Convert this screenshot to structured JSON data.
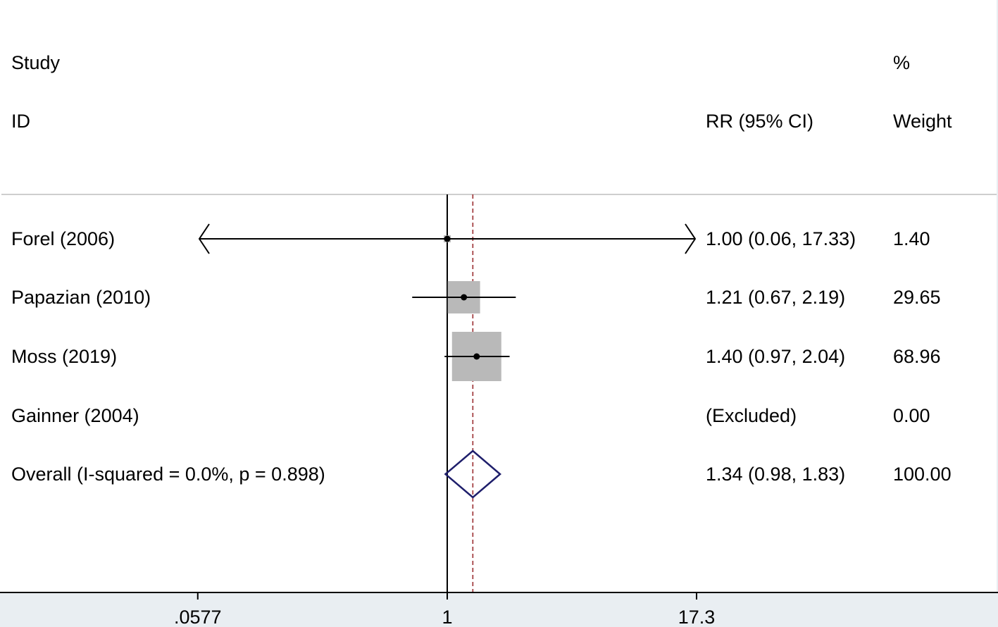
{
  "chart_data": {
    "type": "forest",
    "header": {
      "study_line1": "Study",
      "study_line2": "ID",
      "estimate_header": "RR (95% CI)",
      "weight_line1": "%",
      "weight_line2": "Weight"
    },
    "studies": [
      {
        "label": "Forel (2006)",
        "rr": 1.0,
        "lo": 0.06,
        "hi": 17.33,
        "ci_text": "1.00 (0.06, 17.33)",
        "weight": 1.4,
        "weight_text": "1.40",
        "excluded": false,
        "arrows": true
      },
      {
        "label": "Papazian (2010)",
        "rr": 1.21,
        "lo": 0.67,
        "hi": 2.19,
        "ci_text": "1.21 (0.67, 2.19)",
        "weight": 29.65,
        "weight_text": "29.65",
        "excluded": false,
        "arrows": false
      },
      {
        "label": "Moss (2019)",
        "rr": 1.4,
        "lo": 0.97,
        "hi": 2.04,
        "ci_text": "1.40 (0.97, 2.04)",
        "weight": 68.96,
        "weight_text": "68.96",
        "excluded": false,
        "arrows": false
      },
      {
        "label": "Gainner (2004)",
        "rr": null,
        "lo": null,
        "hi": null,
        "ci_text": "(Excluded)",
        "weight": 0.0,
        "weight_text": "0.00",
        "excluded": true,
        "arrows": false
      }
    ],
    "overall": {
      "label": "Overall  (I-squared = 0.0%, p = 0.898)",
      "rr": 1.34,
      "lo": 0.98,
      "hi": 1.83,
      "ci_text": "1.34 (0.98, 1.83)",
      "weight_text": "100.00"
    },
    "x_scale": "log",
    "x_ticks": [
      0.0577,
      1,
      17.3
    ],
    "x_tick_labels": [
      ".0577",
      "1",
      "17.3"
    ],
    "null_line": 1,
    "colors": {
      "study_box": "#b9b9b9",
      "overall_diamond": "#1e1e6b",
      "overall_line": "#9b2d30",
      "axis": "#000000",
      "separator": "#bdbdbd",
      "background": "#e9eef2"
    }
  }
}
